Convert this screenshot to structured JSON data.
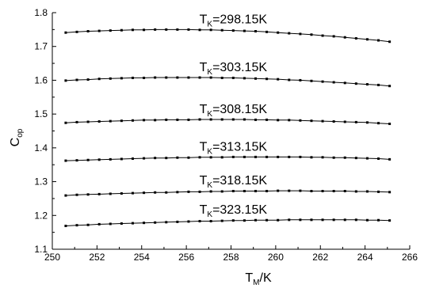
{
  "chart_data": {
    "type": "line",
    "xlabel": {
      "main": "T",
      "sub": "M",
      "suffix": "/K"
    },
    "ylabel": {
      "main": "C",
      "sub": "op"
    },
    "xlim": [
      250,
      266
    ],
    "ylim": [
      1.1,
      1.8
    ],
    "xticks": [
      "250",
      "252",
      "254",
      "256",
      "258",
      "260",
      "262",
      "264",
      "266"
    ],
    "yticks": [
      "1.1",
      "1.2",
      "1.3",
      "1.4",
      "1.5",
      "1.6",
      "1.7",
      "1.8"
    ],
    "grid": false,
    "legend": "none",
    "x": [
      250.6,
      251.1,
      251.6,
      252.1,
      252.6,
      253.1,
      253.6,
      254.1,
      254.6,
      255.1,
      255.6,
      256.1,
      256.6,
      257.1,
      257.6,
      258.1,
      258.6,
      259.1,
      259.6,
      260.1,
      260.6,
      261.1,
      261.6,
      262.1,
      262.6,
      263.1,
      263.6,
      264.1,
      264.6,
      265.1
    ],
    "series": [
      {
        "label_main": "T",
        "label_sub": "K",
        "label_value": "=298.15K",
        "values": [
          1.741,
          1.743,
          1.745,
          1.746,
          1.747,
          1.748,
          1.749,
          1.749,
          1.75,
          1.75,
          1.75,
          1.75,
          1.749,
          1.749,
          1.748,
          1.747,
          1.746,
          1.745,
          1.743,
          1.741,
          1.739,
          1.737,
          1.735,
          1.732,
          1.73,
          1.727,
          1.724,
          1.721,
          1.718,
          1.714
        ]
      },
      {
        "label_main": "T",
        "label_sub": "K",
        "label_value": "=303.15K",
        "values": [
          1.599,
          1.601,
          1.602,
          1.604,
          1.605,
          1.606,
          1.607,
          1.607,
          1.608,
          1.608,
          1.608,
          1.608,
          1.608,
          1.608,
          1.607,
          1.607,
          1.606,
          1.605,
          1.604,
          1.603,
          1.601,
          1.6,
          1.598,
          1.596,
          1.594,
          1.592,
          1.59,
          1.588,
          1.586,
          1.583
        ]
      },
      {
        "label_main": "T",
        "label_sub": "K",
        "label_value": "=308.15K",
        "values": [
          1.474,
          1.476,
          1.477,
          1.478,
          1.479,
          1.48,
          1.481,
          1.482,
          1.482,
          1.483,
          1.483,
          1.483,
          1.484,
          1.484,
          1.484,
          1.484,
          1.484,
          1.483,
          1.483,
          1.482,
          1.482,
          1.481,
          1.48,
          1.479,
          1.478,
          1.477,
          1.476,
          1.475,
          1.473,
          1.471
        ]
      },
      {
        "label_main": "T",
        "label_sub": "K",
        "label_value": "=313.15K",
        "values": [
          1.362,
          1.363,
          1.364,
          1.365,
          1.366,
          1.367,
          1.368,
          1.369,
          1.37,
          1.37,
          1.371,
          1.371,
          1.372,
          1.372,
          1.372,
          1.373,
          1.373,
          1.373,
          1.373,
          1.373,
          1.373,
          1.373,
          1.372,
          1.372,
          1.371,
          1.371,
          1.37,
          1.369,
          1.368,
          1.366
        ]
      },
      {
        "label_main": "T",
        "label_sub": "K",
        "label_value": "=318.15K",
        "values": [
          1.259,
          1.261,
          1.262,
          1.263,
          1.264,
          1.265,
          1.266,
          1.267,
          1.268,
          1.268,
          1.269,
          1.27,
          1.27,
          1.271,
          1.271,
          1.272,
          1.272,
          1.272,
          1.272,
          1.273,
          1.273,
          1.273,
          1.272,
          1.272,
          1.272,
          1.272,
          1.271,
          1.271,
          1.27,
          1.269
        ]
      },
      {
        "label_main": "T",
        "label_sub": "K",
        "label_value": "=323.15K",
        "values": [
          1.169,
          1.171,
          1.172,
          1.174,
          1.175,
          1.176,
          1.177,
          1.178,
          1.179,
          1.18,
          1.181,
          1.182,
          1.183,
          1.183,
          1.184,
          1.185,
          1.185,
          1.186,
          1.186,
          1.186,
          1.187,
          1.187,
          1.187,
          1.187,
          1.187,
          1.187,
          1.187,
          1.186,
          1.186,
          1.185
        ]
      }
    ]
  }
}
